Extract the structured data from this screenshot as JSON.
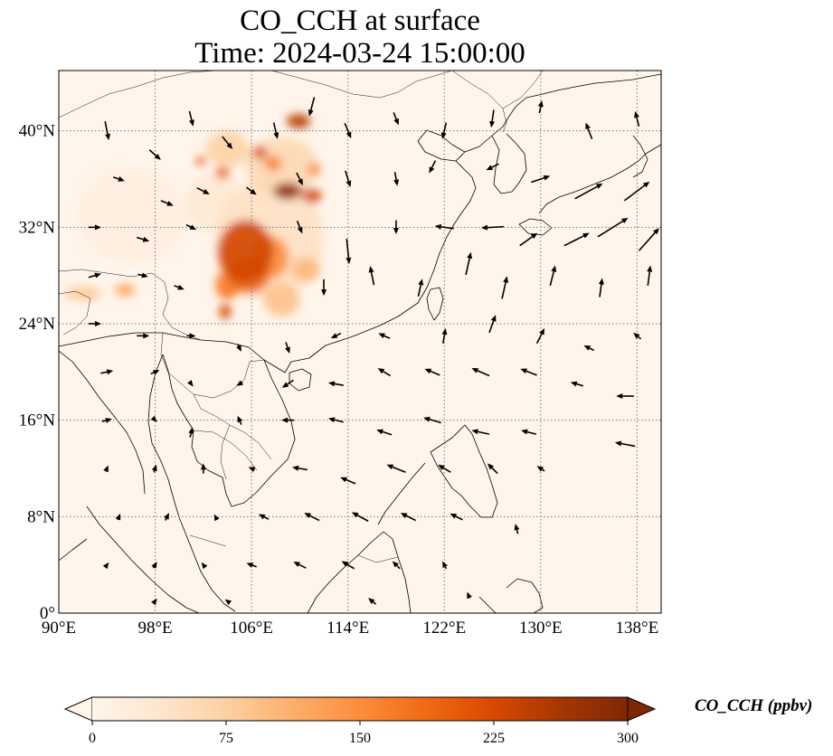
{
  "title": {
    "line1": "CO_CCH at surface",
    "line2": "Time: 2024-03-24 15:00:00"
  },
  "map": {
    "extent": {
      "lon_min": 90,
      "lon_max": 140,
      "lat_min": 0,
      "lat_max": 45
    },
    "x_ticks": [
      {
        "value": 90,
        "label": "90°E"
      },
      {
        "value": 98,
        "label": "98°E"
      },
      {
        "value": 106,
        "label": "106°E"
      },
      {
        "value": 114,
        "label": "114°E"
      },
      {
        "value": 122,
        "label": "122°E"
      },
      {
        "value": 130,
        "label": "130°E"
      },
      {
        "value": 138,
        "label": "138°E"
      }
    ],
    "y_ticks": [
      {
        "value": 0,
        "label": "0°"
      },
      {
        "value": 8,
        "label": "8°N"
      },
      {
        "value": 16,
        "label": "16°N"
      },
      {
        "value": 24,
        "label": "24°N"
      },
      {
        "value": 32,
        "label": "32°N"
      },
      {
        "value": 40,
        "label": "40°N"
      }
    ],
    "gridlines": true,
    "background_color": "#fff5eb",
    "coastline_color": "#000000"
  },
  "colorbar": {
    "label": "CO_CCH (ppbv)",
    "min": 0,
    "max": 300,
    "ticks": [
      {
        "value": 0,
        "label": "0"
      },
      {
        "value": 75,
        "label": "75"
      },
      {
        "value": 150,
        "label": "150"
      },
      {
        "value": 225,
        "label": "225"
      },
      {
        "value": 300,
        "label": "300"
      }
    ],
    "colors": [
      "#fff5eb",
      "#fee6ce",
      "#fdd0a2",
      "#fdae6b",
      "#fd8d3c",
      "#f16913",
      "#d94801",
      "#a63603",
      "#7f2704"
    ],
    "extend": "both",
    "under_color": "#fff5eb",
    "over_color": "#7f2704"
  },
  "concentration_blobs": [
    {
      "lon": 105.5,
      "lat": 30.0,
      "rx": 2.3,
      "ry": 2.6,
      "value": 230
    },
    {
      "lon": 105.8,
      "lat": 28.0,
      "rx": 1.7,
      "ry": 1.5,
      "value": 190
    },
    {
      "lon": 107.5,
      "lat": 29.5,
      "rx": 1.6,
      "ry": 1.8,
      "value": 150
    },
    {
      "lon": 104.0,
      "lat": 27.2,
      "rx": 1.0,
      "ry": 1.2,
      "value": 170
    },
    {
      "lon": 103.8,
      "lat": 25.0,
      "rx": 0.5,
      "ry": 0.6,
      "value": 230
    },
    {
      "lon": 109.0,
      "lat": 35.0,
      "rx": 1.2,
      "ry": 0.7,
      "value": 280
    },
    {
      "lon": 111.0,
      "lat": 34.6,
      "rx": 0.8,
      "ry": 0.6,
      "value": 230
    },
    {
      "lon": 106.7,
      "lat": 38.2,
      "rx": 0.6,
      "ry": 0.5,
      "value": 230
    },
    {
      "lon": 109.9,
      "lat": 40.8,
      "rx": 1.0,
      "ry": 0.6,
      "value": 250
    },
    {
      "lon": 107.8,
      "lat": 37.3,
      "rx": 0.7,
      "ry": 0.6,
      "value": 170
    },
    {
      "lon": 103.6,
      "lat": 36.5,
      "rx": 0.6,
      "ry": 0.5,
      "value": 200
    },
    {
      "lon": 101.8,
      "lat": 37.5,
      "rx": 0.4,
      "ry": 0.4,
      "value": 200
    },
    {
      "lon": 111.2,
      "lat": 36.8,
      "rx": 0.5,
      "ry": 0.5,
      "value": 170
    },
    {
      "lon": 95.5,
      "lat": 26.8,
      "rx": 0.8,
      "ry": 0.5,
      "value": 130
    },
    {
      "lon": 92.0,
      "lat": 26.5,
      "rx": 1.5,
      "ry": 0.6,
      "value": 80
    },
    {
      "lon": 108.5,
      "lat": 26.0,
      "rx": 1.5,
      "ry": 1.4,
      "value": 90
    },
    {
      "lon": 110.5,
      "lat": 28.5,
      "rx": 1.2,
      "ry": 1.0,
      "value": 100
    },
    {
      "lon": 108.5,
      "lat": 37.0,
      "rx": 3.0,
      "ry": 2.5,
      "value": 60
    },
    {
      "lon": 104.0,
      "lat": 38.5,
      "rx": 1.8,
      "ry": 1.5,
      "value": 70
    },
    {
      "lon": 107.5,
      "lat": 31.0,
      "rx": 4.5,
      "ry": 5.0,
      "value": 45
    },
    {
      "lon": 103.0,
      "lat": 34.0,
      "rx": 2.5,
      "ry": 2.5,
      "value": 30
    },
    {
      "lon": 96.0,
      "lat": 33.0,
      "rx": 4.5,
      "ry": 4.0,
      "value": 15
    }
  ],
  "wind_vectors": [
    {
      "lon": 94,
      "lat": 40,
      "u": 0.3,
      "v": -1.5
    },
    {
      "lon": 98,
      "lat": 38,
      "u": 0.9,
      "v": -0.8
    },
    {
      "lon": 101,
      "lat": 41,
      "u": 0.3,
      "v": -1.2
    },
    {
      "lon": 104,
      "lat": 39,
      "u": 0.8,
      "v": -1.0
    },
    {
      "lon": 108,
      "lat": 40,
      "u": 0.3,
      "v": -1.3
    },
    {
      "lon": 111,
      "lat": 42,
      "u": -0.4,
      "v": -1.5
    },
    {
      "lon": 114,
      "lat": 40,
      "u": 0.5,
      "v": -1.2
    },
    {
      "lon": 118,
      "lat": 41,
      "u": 0.4,
      "v": -1.0
    },
    {
      "lon": 122,
      "lat": 40,
      "u": -0.3,
      "v": -1.3
    },
    {
      "lon": 126,
      "lat": 41,
      "u": -0.2,
      "v": -1.4
    },
    {
      "lon": 130,
      "lat": 42,
      "u": 0.2,
      "v": 1.0
    },
    {
      "lon": 134,
      "lat": 40,
      "u": -0.5,
      "v": 1.3
    },
    {
      "lon": 138,
      "lat": 41,
      "u": -0.3,
      "v": 1.2
    },
    {
      "lon": 95,
      "lat": 36,
      "u": 0.9,
      "v": -0.3
    },
    {
      "lon": 99,
      "lat": 34,
      "u": 1.0,
      "v": -0.4
    },
    {
      "lon": 102,
      "lat": 35,
      "u": 1.0,
      "v": -0.5
    },
    {
      "lon": 106,
      "lat": 35,
      "u": 0.8,
      "v": -0.6
    },
    {
      "lon": 110,
      "lat": 36,
      "u": 0.5,
      "v": -1.0
    },
    {
      "lon": 114,
      "lat": 36,
      "u": 0.4,
      "v": -1.3
    },
    {
      "lon": 118,
      "lat": 36,
      "u": 0.2,
      "v": -1.1
    },
    {
      "lon": 121,
      "lat": 37,
      "u": -0.5,
      "v": -1.0
    },
    {
      "lon": 126,
      "lat": 37,
      "u": -1.0,
      "v": -0.5
    },
    {
      "lon": 130,
      "lat": 36,
      "u": 1.5,
      "v": 0.5
    },
    {
      "lon": 134,
      "lat": 35,
      "u": 2.2,
      "v": 1.2
    },
    {
      "lon": 138,
      "lat": 35,
      "u": 2.0,
      "v": 1.5
    },
    {
      "lon": 93,
      "lat": 32,
      "u": 1.0,
      "v": 0.0
    },
    {
      "lon": 97,
      "lat": 31,
      "u": 1.0,
      "v": -0.3
    },
    {
      "lon": 101,
      "lat": 32,
      "u": 0.8,
      "v": -0.4
    },
    {
      "lon": 110,
      "lat": 32,
      "u": 0.4,
      "v": -1.0
    },
    {
      "lon": 114,
      "lat": 30,
      "u": 0.2,
      "v": -2.0
    },
    {
      "lon": 118,
      "lat": 32,
      "u": 0.0,
      "v": -1.1
    },
    {
      "lon": 122,
      "lat": 32,
      "u": -1.5,
      "v": 0.2
    },
    {
      "lon": 126,
      "lat": 32,
      "u": -1.8,
      "v": -0.1
    },
    {
      "lon": 129,
      "lat": 31,
      "u": 1.4,
      "v": 1.0
    },
    {
      "lon": 133,
      "lat": 31,
      "u": 2.0,
      "v": 1.0
    },
    {
      "lon": 136,
      "lat": 32,
      "u": 2.4,
      "v": 1.5
    },
    {
      "lon": 139,
      "lat": 31,
      "u": 1.6,
      "v": 1.8
    },
    {
      "lon": 93,
      "lat": 28,
      "u": 1.0,
      "v": 0.3
    },
    {
      "lon": 97,
      "lat": 28,
      "u": 0.8,
      "v": -0.2
    },
    {
      "lon": 100,
      "lat": 27,
      "u": 0.8,
      "v": -0.3
    },
    {
      "lon": 112,
      "lat": 27,
      "u": 0.0,
      "v": -1.3
    },
    {
      "lon": 116,
      "lat": 28,
      "u": -0.3,
      "v": 1.5
    },
    {
      "lon": 120,
      "lat": 27,
      "u": 0.3,
      "v": 1.4
    },
    {
      "lon": 124,
      "lat": 29,
      "u": 0.4,
      "v": 1.8
    },
    {
      "lon": 127,
      "lat": 27,
      "u": 0.4,
      "v": 1.8
    },
    {
      "lon": 131,
      "lat": 28,
      "u": 0.4,
      "v": 1.6
    },
    {
      "lon": 135,
      "lat": 27,
      "u": 0.2,
      "v": 1.5
    },
    {
      "lon": 139,
      "lat": 28,
      "u": 0.2,
      "v": 1.6
    },
    {
      "lon": 93,
      "lat": 24,
      "u": 1.0,
      "v": 0.0
    },
    {
      "lon": 97,
      "lat": 23,
      "u": 1.0,
      "v": 0.0
    },
    {
      "lon": 101,
      "lat": 23,
      "u": 0.7,
      "v": 0.0
    },
    {
      "lon": 105,
      "lat": 22,
      "u": 0.3,
      "v": -0.6
    },
    {
      "lon": 109,
      "lat": 22,
      "u": 0.3,
      "v": -0.9
    },
    {
      "lon": 113,
      "lat": 23,
      "u": -0.8,
      "v": -0.4
    },
    {
      "lon": 117,
      "lat": 23,
      "u": -0.9,
      "v": 0.4
    },
    {
      "lon": 122,
      "lat": 23,
      "u": 0.2,
      "v": 1.2
    },
    {
      "lon": 126,
      "lat": 24,
      "u": 0.5,
      "v": 1.4
    },
    {
      "lon": 130,
      "lat": 23,
      "u": 0.6,
      "v": 1.2
    },
    {
      "lon": 134,
      "lat": 22,
      "u": -0.8,
      "v": 0.4
    },
    {
      "lon": 138,
      "lat": 23,
      "u": -0.6,
      "v": 0.5
    },
    {
      "lon": 94,
      "lat": 20,
      "u": 1.0,
      "v": 0.2
    },
    {
      "lon": 98,
      "lat": 20,
      "u": 0.7,
      "v": 0.3
    },
    {
      "lon": 101,
      "lat": 19,
      "u": 0.3,
      "v": -0.4
    },
    {
      "lon": 105,
      "lat": 19,
      "u": -0.5,
      "v": -0.3
    },
    {
      "lon": 109,
      "lat": 19,
      "u": -0.9,
      "v": -0.6
    },
    {
      "lon": 113,
      "lat": 19,
      "u": -1.2,
      "v": 0.2
    },
    {
      "lon": 117,
      "lat": 20,
      "u": -1.0,
      "v": 0.6
    },
    {
      "lon": 121,
      "lat": 20,
      "u": -1.2,
      "v": 0.5
    },
    {
      "lon": 125,
      "lat": 20,
      "u": -1.4,
      "v": 0.6
    },
    {
      "lon": 129,
      "lat": 20,
      "u": -1.3,
      "v": 0.5
    },
    {
      "lon": 133,
      "lat": 19,
      "u": -1.0,
      "v": 0.3
    },
    {
      "lon": 137,
      "lat": 18,
      "u": -1.4,
      "v": 0.0
    },
    {
      "lon": 94,
      "lat": 16,
      "u": 0.8,
      "v": 0.2
    },
    {
      "lon": 98,
      "lat": 16,
      "u": 0.3,
      "v": -0.3
    },
    {
      "lon": 101,
      "lat": 15,
      "u": 0.2,
      "v": 0.8
    },
    {
      "lon": 105,
      "lat": 16,
      "u": -0.3,
      "v": 0.7
    },
    {
      "lon": 109,
      "lat": 16,
      "u": -1.0,
      "v": 0.0
    },
    {
      "lon": 113,
      "lat": 16,
      "u": -1.2,
      "v": 0.3
    },
    {
      "lon": 117,
      "lat": 15,
      "u": -1.2,
      "v": 0.4
    },
    {
      "lon": 121,
      "lat": 16,
      "u": -1.4,
      "v": 0.4
    },
    {
      "lon": 125,
      "lat": 15,
      "u": -1.4,
      "v": 0.3
    },
    {
      "lon": 129,
      "lat": 15,
      "u": -1.2,
      "v": 0.3
    },
    {
      "lon": 137,
      "lat": 14,
      "u": -1.6,
      "v": 0.3
    },
    {
      "lon": 94,
      "lat": 12,
      "u": 0.2,
      "v": 0.5
    },
    {
      "lon": 98,
      "lat": 12,
      "u": 0.2,
      "v": 0.6
    },
    {
      "lon": 102,
      "lat": 12,
      "u": 0.0,
      "v": 0.8
    },
    {
      "lon": 106,
      "lat": 12,
      "u": -0.5,
      "v": 0.2
    },
    {
      "lon": 110,
      "lat": 12,
      "u": -1.2,
      "v": 0.2
    },
    {
      "lon": 114,
      "lat": 11,
      "u": -1.2,
      "v": 0.5
    },
    {
      "lon": 118,
      "lat": 12,
      "u": -1.5,
      "v": 0.6
    },
    {
      "lon": 122,
      "lat": 12,
      "u": -1.0,
      "v": 0.6
    },
    {
      "lon": 126,
      "lat": 12,
      "u": -0.8,
      "v": 0.8
    },
    {
      "lon": 130,
      "lat": 12,
      "u": -0.6,
      "v": 0.4
    },
    {
      "lon": 95,
      "lat": 8,
      "u": 0.2,
      "v": 0.5
    },
    {
      "lon": 99,
      "lat": 8,
      "u": 0.3,
      "v": 0.6
    },
    {
      "lon": 103,
      "lat": 8,
      "u": -0.2,
      "v": 0.4
    },
    {
      "lon": 107,
      "lat": 8,
      "u": -0.8,
      "v": 0.4
    },
    {
      "lon": 111,
      "lat": 8,
      "u": -1.2,
      "v": 0.6
    },
    {
      "lon": 115,
      "lat": 8,
      "u": -1.3,
      "v": 0.7
    },
    {
      "lon": 119,
      "lat": 8,
      "u": -1.2,
      "v": 0.6
    },
    {
      "lon": 123,
      "lat": 8,
      "u": -1.0,
      "v": 0.5
    },
    {
      "lon": 128,
      "lat": 7,
      "u": -0.2,
      "v": 0.8
    },
    {
      "lon": 94,
      "lat": 4,
      "u": 0.3,
      "v": 0.4
    },
    {
      "lon": 98,
      "lat": 4,
      "u": 0.3,
      "v": 0.5
    },
    {
      "lon": 102,
      "lat": 4,
      "u": -0.3,
      "v": 0.4
    },
    {
      "lon": 106,
      "lat": 4,
      "u": -0.8,
      "v": 0.3
    },
    {
      "lon": 110,
      "lat": 4,
      "u": -1.0,
      "v": 0.5
    },
    {
      "lon": 114,
      "lat": 4,
      "u": -1.0,
      "v": 0.6
    },
    {
      "lon": 118,
      "lat": 4,
      "u": -0.6,
      "v": 0.6
    },
    {
      "lon": 122,
      "lat": 4,
      "u": -0.3,
      "v": 0.6
    },
    {
      "lon": 98,
      "lat": 1,
      "u": 0.3,
      "v": 0.4
    },
    {
      "lon": 104,
      "lat": 1,
      "u": -0.4,
      "v": 0.3
    },
    {
      "lon": 116,
      "lat": 1,
      "u": -0.6,
      "v": 0.5
    },
    {
      "lon": 124,
      "lat": 1.5,
      "u": -0.2,
      "v": 0.5
    }
  ]
}
